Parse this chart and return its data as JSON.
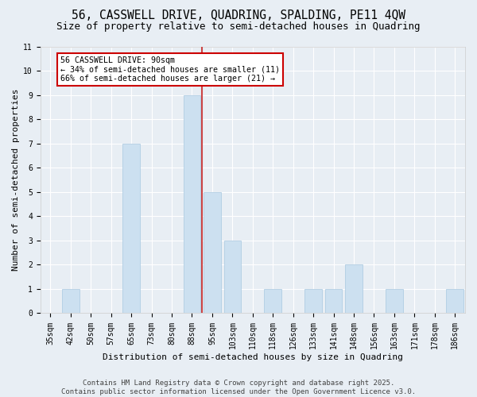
{
  "title": "56, CASSWELL DRIVE, QUADRING, SPALDING, PE11 4QW",
  "subtitle": "Size of property relative to semi-detached houses in Quadring",
  "xlabel": "Distribution of semi-detached houses by size in Quadring",
  "ylabel": "Number of semi-detached properties",
  "categories": [
    "35sqm",
    "42sqm",
    "50sqm",
    "57sqm",
    "65sqm",
    "73sqm",
    "80sqm",
    "88sqm",
    "95sqm",
    "103sqm",
    "110sqm",
    "118sqm",
    "126sqm",
    "133sqm",
    "141sqm",
    "148sqm",
    "156sqm",
    "163sqm",
    "171sqm",
    "178sqm",
    "186sqm"
  ],
  "values": [
    0,
    1,
    0,
    0,
    7,
    0,
    0,
    9,
    5,
    3,
    0,
    1,
    0,
    1,
    1,
    2,
    0,
    1,
    0,
    0,
    1
  ],
  "highlight_index": 7,
  "bar_color": "#cce0f0",
  "bar_edge_color": "#a8c8e0",
  "highlight_line_color": "#cc4444",
  "annotation_text": "56 CASSWELL DRIVE: 90sqm\n← 34% of semi-detached houses are smaller (11)\n66% of semi-detached houses are larger (21) →",
  "annotation_box_facecolor": "#ffffff",
  "annotation_box_edgecolor": "#cc0000",
  "ylim": [
    0,
    11
  ],
  "yticks": [
    0,
    1,
    2,
    3,
    4,
    5,
    6,
    7,
    8,
    9,
    10,
    11
  ],
  "footer_line1": "Contains HM Land Registry data © Crown copyright and database right 2025.",
  "footer_line2": "Contains public sector information licensed under the Open Government Licence v3.0.",
  "background_color": "#e8eef4",
  "grid_color": "#ffffff",
  "title_fontsize": 10.5,
  "subtitle_fontsize": 9,
  "axis_label_fontsize": 8,
  "tick_fontsize": 7,
  "footer_fontsize": 6.5
}
